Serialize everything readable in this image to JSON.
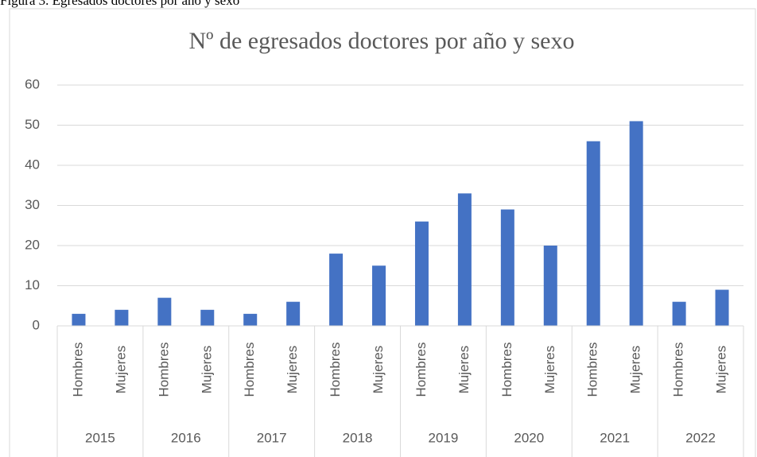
{
  "caption": "Figura 3. Egresados doctores por año y sexo",
  "chart_data": {
    "type": "bar",
    "title": "Nº de egresados  doctores por año y sexo",
    "categories": [
      "Hombres",
      "Mujeres",
      "Hombres",
      "Mujeres",
      "Hombres",
      "Mujeres",
      "Hombres",
      "Mujeres",
      "Hombres",
      "Mujeres",
      "Hombres",
      "Mujeres",
      "Hombres",
      "Mujeres",
      "Hombres",
      "Mujeres"
    ],
    "groups": [
      "2015",
      "2016",
      "2017",
      "2018",
      "2019",
      "2020",
      "2021",
      "2022"
    ],
    "values": [
      3,
      4,
      7,
      4,
      3,
      6,
      18,
      15,
      26,
      33,
      29,
      20,
      46,
      51,
      6,
      9
    ],
    "color": "#4472c4",
    "ylim": [
      0,
      60
    ],
    "yticks": [
      0,
      10,
      20,
      30,
      40,
      50,
      60
    ],
    "grid": true
  }
}
